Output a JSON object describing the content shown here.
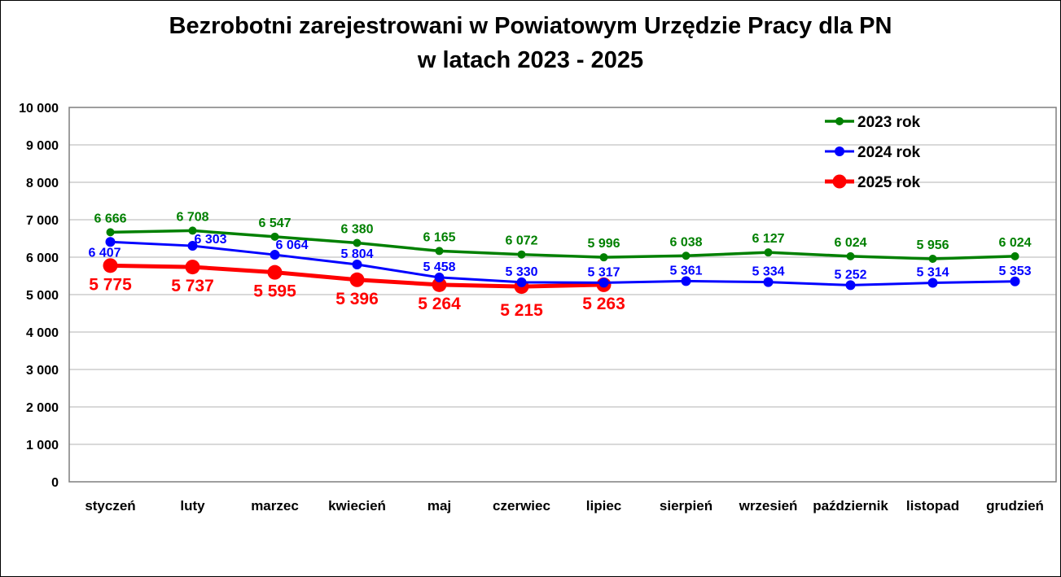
{
  "title": {
    "line1": "Bezrobotni zarejestrowani w Powiatowym Urzędzie Pracy dla PN",
    "line2": "w latach 2023 - 2025"
  },
  "colors": {
    "series_2023": "#008000",
    "series_2024": "#0000FF",
    "series_2025": "#FF0000",
    "gridline": "#B3B3B3",
    "plot_border": "#7F7F7F",
    "text": "#000000"
  },
  "chart_data": {
    "type": "line",
    "title": "Bezrobotni zarejestrowani w Powiatowym Urzędzie Pracy dla PN w latach 2023 - 2025",
    "categories": [
      "styczeń",
      "luty",
      "marzec",
      "kwiecień",
      "maj",
      "czerwiec",
      "lipiec",
      "sierpień",
      "wrzesień",
      "październik",
      "listopad",
      "grudzień"
    ],
    "series": [
      {
        "name": "2023 rok",
        "color": "#008000",
        "values": [
          6666,
          6708,
          6547,
          6380,
          6165,
          6072,
          5996,
          6038,
          6127,
          6024,
          5956,
          6024
        ]
      },
      {
        "name": "2024 rok",
        "color": "#0000FF",
        "values": [
          6407,
          6303,
          6064,
          5804,
          5458,
          5330,
          5317,
          5361,
          5334,
          5252,
          5314,
          5353
        ]
      },
      {
        "name": "2025 rok",
        "color": "#FF0000",
        "values": [
          5775,
          5737,
          5595,
          5396,
          5264,
          5215,
          5263
        ]
      }
    ],
    "ylim": [
      0,
      10000
    ],
    "ytick_step": 1000,
    "ytick_labels": [
      "0",
      "1 000",
      "2 000",
      "3 000",
      "4 000",
      "5 000",
      "6 000",
      "7 000",
      "8 000",
      "9 000",
      "10 000"
    ],
    "grid": true,
    "data_labels": true,
    "legend_position": "top-right",
    "legend_entries": [
      "2023 rok",
      "2024 rok",
      "2025 rok"
    ],
    "number_format": "space-thousands"
  }
}
